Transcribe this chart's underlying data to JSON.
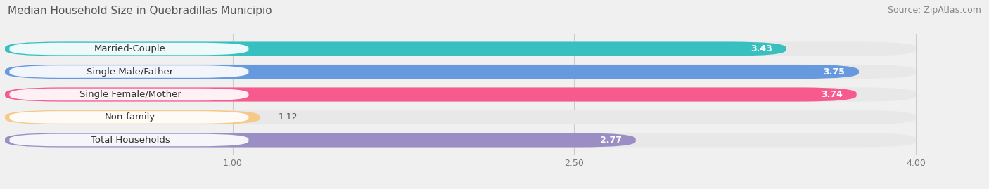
{
  "title": "Median Household Size in Quebradillas Municipio",
  "source": "Source: ZipAtlas.com",
  "categories": [
    "Married-Couple",
    "Single Male/Father",
    "Single Female/Mother",
    "Non-family",
    "Total Households"
  ],
  "values": [
    3.43,
    3.75,
    3.74,
    1.12,
    2.77
  ],
  "bar_colors": [
    "#38c0c0",
    "#6699dd",
    "#f75b8e",
    "#f5c98a",
    "#9b8ec4"
  ],
  "xlim": [
    0,
    4.3
  ],
  "xmin": 0,
  "xmax": 4.0,
  "xticks": [
    1.0,
    2.5,
    4.0
  ],
  "xtick_labels": [
    "1.00",
    "2.50",
    "4.00"
  ],
  "title_fontsize": 11,
  "source_fontsize": 9,
  "label_fontsize": 9.5,
  "value_fontsize": 9,
  "background_color": "#f0f0f0",
  "row_bg_color": "#e8e8e8",
  "bar_label_bg": "#ffffff"
}
